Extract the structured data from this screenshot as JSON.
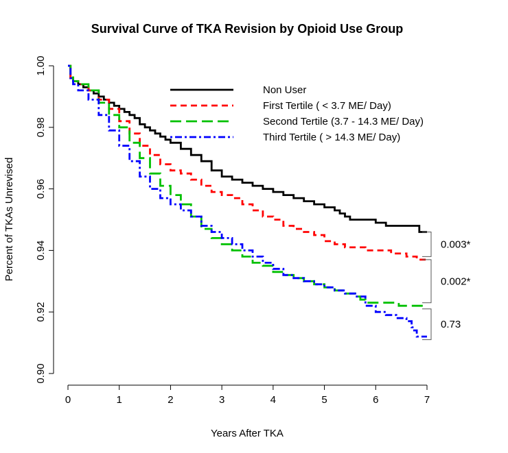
{
  "chart_data": {
    "type": "line",
    "title": "Survival Curve of TKA Revision by Opioid Use Group",
    "xlabel": "Years After TKA",
    "ylabel": "Percent of TKAs Unrevised",
    "xlim": [
      0,
      7
    ],
    "ylim": [
      0.9,
      1.0
    ],
    "x_ticks": [
      0,
      1,
      2,
      3,
      4,
      5,
      6,
      7
    ],
    "x_tick_labels": [
      "0",
      "1",
      "2",
      "3",
      "4",
      "5",
      "6",
      "7"
    ],
    "y_ticks": [
      0.9,
      0.92,
      0.94,
      0.96,
      0.98,
      1.0
    ],
    "y_tick_labels": [
      "0.90",
      "0.92",
      "0.94",
      "0.96",
      "0.98",
      "1.00"
    ],
    "legend_position": "top-right (inside plot)",
    "grid": false,
    "series": [
      {
        "name": "Non User",
        "color": "#000000",
        "style": "solid",
        "points": [
          [
            0,
            1.0
          ],
          [
            0.05,
            0.996
          ],
          [
            0.1,
            0.995
          ],
          [
            0.2,
            0.994
          ],
          [
            0.3,
            0.993
          ],
          [
            0.4,
            0.992
          ],
          [
            0.5,
            0.991
          ],
          [
            0.6,
            0.99
          ],
          [
            0.7,
            0.989
          ],
          [
            0.8,
            0.988
          ],
          [
            0.9,
            0.987
          ],
          [
            1.0,
            0.986
          ],
          [
            1.1,
            0.985
          ],
          [
            1.2,
            0.984
          ],
          [
            1.3,
            0.983
          ],
          [
            1.4,
            0.981
          ],
          [
            1.5,
            0.98
          ],
          [
            1.6,
            0.979
          ],
          [
            1.7,
            0.978
          ],
          [
            1.8,
            0.977
          ],
          [
            1.9,
            0.976
          ],
          [
            2.0,
            0.975
          ],
          [
            2.2,
            0.973
          ],
          [
            2.4,
            0.971
          ],
          [
            2.6,
            0.969
          ],
          [
            2.8,
            0.966
          ],
          [
            3.0,
            0.964
          ],
          [
            3.2,
            0.963
          ],
          [
            3.4,
            0.962
          ],
          [
            3.6,
            0.961
          ],
          [
            3.8,
            0.96
          ],
          [
            4.0,
            0.959
          ],
          [
            4.2,
            0.958
          ],
          [
            4.4,
            0.957
          ],
          [
            4.6,
            0.956
          ],
          [
            4.8,
            0.955
          ],
          [
            5.0,
            0.954
          ],
          [
            5.2,
            0.953
          ],
          [
            5.3,
            0.952
          ],
          [
            5.4,
            0.951
          ],
          [
            5.5,
            0.95
          ],
          [
            5.8,
            0.95
          ],
          [
            6.0,
            0.949
          ],
          [
            6.2,
            0.948
          ],
          [
            6.6,
            0.948
          ],
          [
            6.8,
            0.948
          ],
          [
            6.85,
            0.946
          ],
          [
            7.0,
            0.946
          ]
        ]
      },
      {
        "name": "First Tertile ( < 3.7 ME/ Day)",
        "color": "#ff0000",
        "style": "dashed",
        "points": [
          [
            0,
            1.0
          ],
          [
            0.05,
            0.996
          ],
          [
            0.1,
            0.995
          ],
          [
            0.2,
            0.994
          ],
          [
            0.4,
            0.992
          ],
          [
            0.6,
            0.989
          ],
          [
            0.8,
            0.986
          ],
          [
            1.0,
            0.982
          ],
          [
            1.2,
            0.978
          ],
          [
            1.4,
            0.974
          ],
          [
            1.6,
            0.971
          ],
          [
            1.8,
            0.968
          ],
          [
            2.0,
            0.966
          ],
          [
            2.2,
            0.965
          ],
          [
            2.4,
            0.963
          ],
          [
            2.6,
            0.961
          ],
          [
            2.8,
            0.959
          ],
          [
            3.0,
            0.958
          ],
          [
            3.2,
            0.957
          ],
          [
            3.4,
            0.955
          ],
          [
            3.6,
            0.953
          ],
          [
            3.8,
            0.951
          ],
          [
            4.0,
            0.95
          ],
          [
            4.2,
            0.948
          ],
          [
            4.4,
            0.947
          ],
          [
            4.6,
            0.946
          ],
          [
            4.8,
            0.945
          ],
          [
            5.0,
            0.943
          ],
          [
            5.2,
            0.942
          ],
          [
            5.4,
            0.941
          ],
          [
            5.6,
            0.941
          ],
          [
            5.8,
            0.94
          ],
          [
            6.0,
            0.94
          ],
          [
            6.3,
            0.939
          ],
          [
            6.6,
            0.938
          ],
          [
            6.8,
            0.937
          ],
          [
            7.0,
            0.937
          ]
        ]
      },
      {
        "name": "Second Tertile (3.7 - 14.3 ME/ Day)",
        "color": "#00c000",
        "style": "longdash",
        "points": [
          [
            0,
            1.0
          ],
          [
            0.05,
            0.997
          ],
          [
            0.1,
            0.995
          ],
          [
            0.2,
            0.994
          ],
          [
            0.4,
            0.992
          ],
          [
            0.6,
            0.988
          ],
          [
            0.8,
            0.984
          ],
          [
            1.0,
            0.98
          ],
          [
            1.2,
            0.975
          ],
          [
            1.4,
            0.97
          ],
          [
            1.6,
            0.965
          ],
          [
            1.8,
            0.961
          ],
          [
            2.0,
            0.958
          ],
          [
            2.2,
            0.955
          ],
          [
            2.4,
            0.951
          ],
          [
            2.6,
            0.947
          ],
          [
            2.8,
            0.944
          ],
          [
            3.0,
            0.942
          ],
          [
            3.2,
            0.94
          ],
          [
            3.4,
            0.938
          ],
          [
            3.6,
            0.936
          ],
          [
            3.8,
            0.935
          ],
          [
            4.0,
            0.933
          ],
          [
            4.2,
            0.932
          ],
          [
            4.4,
            0.931
          ],
          [
            4.6,
            0.93
          ],
          [
            4.8,
            0.929
          ],
          [
            5.0,
            0.928
          ],
          [
            5.2,
            0.927
          ],
          [
            5.4,
            0.926
          ],
          [
            5.6,
            0.925
          ],
          [
            5.7,
            0.924
          ],
          [
            5.8,
            0.923
          ],
          [
            6.0,
            0.923
          ],
          [
            6.2,
            0.923
          ],
          [
            6.4,
            0.923
          ],
          [
            6.45,
            0.922
          ],
          [
            7.0,
            0.922
          ]
        ]
      },
      {
        "name": "Third Tertile ( > 14.3 ME/ Day)",
        "color": "#0000ff",
        "style": "dotdash",
        "points": [
          [
            0,
            1.0
          ],
          [
            0.05,
            0.996
          ],
          [
            0.1,
            0.994
          ],
          [
            0.2,
            0.992
          ],
          [
            0.4,
            0.989
          ],
          [
            0.6,
            0.984
          ],
          [
            0.8,
            0.979
          ],
          [
            1.0,
            0.974
          ],
          [
            1.2,
            0.969
          ],
          [
            1.4,
            0.964
          ],
          [
            1.6,
            0.96
          ],
          [
            1.8,
            0.957
          ],
          [
            2.0,
            0.955
          ],
          [
            2.2,
            0.953
          ],
          [
            2.4,
            0.951
          ],
          [
            2.6,
            0.948
          ],
          [
            2.8,
            0.946
          ],
          [
            3.0,
            0.944
          ],
          [
            3.2,
            0.942
          ],
          [
            3.4,
            0.94
          ],
          [
            3.6,
            0.938
          ],
          [
            3.8,
            0.936
          ],
          [
            4.0,
            0.934
          ],
          [
            4.2,
            0.932
          ],
          [
            4.4,
            0.931
          ],
          [
            4.6,
            0.93
          ],
          [
            4.8,
            0.929
          ],
          [
            5.0,
            0.928
          ],
          [
            5.2,
            0.927
          ],
          [
            5.4,
            0.926
          ],
          [
            5.6,
            0.925
          ],
          [
            5.8,
            0.922
          ],
          [
            6.0,
            0.92
          ],
          [
            6.2,
            0.919
          ],
          [
            6.4,
            0.918
          ],
          [
            6.6,
            0.917
          ],
          [
            6.7,
            0.915
          ],
          [
            6.75,
            0.914
          ],
          [
            6.8,
            0.912
          ],
          [
            7.0,
            0.912
          ]
        ]
      }
    ],
    "annotations": [
      {
        "text": "0.003*",
        "y_top": 0.946,
        "y_bottom": 0.938
      },
      {
        "text": "0.002*",
        "y_top": 0.937,
        "y_bottom": 0.923
      },
      {
        "text": "0.73",
        "y_top": 0.921,
        "y_bottom": 0.911
      }
    ]
  }
}
